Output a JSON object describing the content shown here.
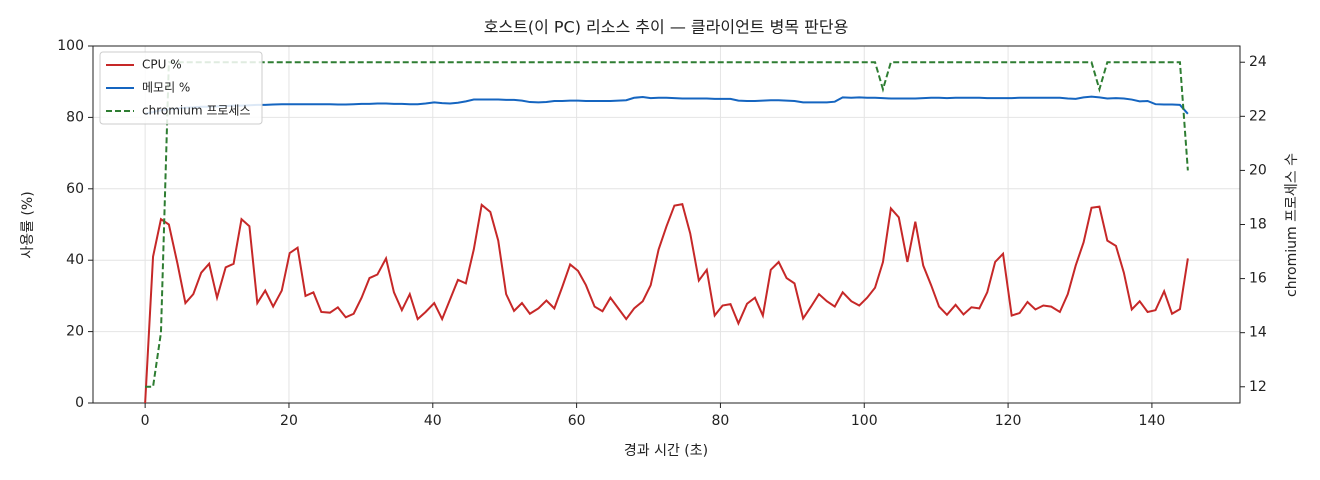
{
  "chart_data": {
    "type": "line",
    "title": "호스트(이 PC) 리소스 추이 — 클라이언트 병목 판단용",
    "xlabel": "경과 시간 (초)",
    "ylabel": "사용률 (%)",
    "y2label": "chromium 프로세스 수",
    "x": [
      0,
      1.1,
      2.2,
      3.3,
      4.5,
      5.6,
      6.7,
      7.8,
      8.9,
      10,
      11.2,
      12.3,
      13.4,
      14.5,
      15.6,
      16.7,
      17.8,
      19,
      20.1,
      21.2,
      22.3,
      23.4,
      24.5,
      25.7,
      26.8,
      27.9,
      29,
      30.1,
      31.2,
      32.3,
      33.5,
      34.6,
      35.7,
      36.8,
      37.9,
      39,
      40.2,
      41.3,
      42.4,
      43.5,
      44.6,
      45.7,
      46.8,
      48,
      49.1,
      50.2,
      51.3,
      52.4,
      53.5,
      54.7,
      55.8,
      56.9,
      58,
      59.1,
      60.2,
      61.3,
      62.5,
      63.6,
      64.7,
      65.8,
      66.9,
      68,
      69.2,
      70.3,
      71.4,
      72.5,
      73.6,
      74.7,
      75.8,
      77,
      78.1,
      79.2,
      80.3,
      81.4,
      82.5,
      83.7,
      84.8,
      85.9,
      87,
      88.1,
      89.2,
      90.3,
      91.5,
      92.6,
      93.7,
      94.8,
      95.9,
      97,
      98.2,
      99.3,
      100.4,
      101.5,
      102.6,
      103.7,
      104.8,
      106,
      107.1,
      108.2,
      109.3,
      110.4,
      111.5,
      112.7,
      113.8,
      114.9,
      116,
      117.1,
      118.2,
      119.3,
      120.5,
      121.6,
      122.7,
      123.8,
      124.9,
      126,
      127.2,
      128.3,
      129.4,
      130.5,
      131.6,
      132.7,
      133.8,
      135,
      136.1,
      137.2,
      138.3,
      139.4,
      140.5,
      141.7,
      142.8,
      143.9,
      145
    ],
    "series": [
      {
        "name": "CPU %",
        "color": "#c62828",
        "linestyle": "solid",
        "values": [
          0,
          41,
          51.5,
          50,
          39,
          28,
          30.5,
          36.5,
          39,
          29.5,
          38,
          39,
          51.5,
          49.5,
          28,
          31.5,
          27,
          31.5,
          42,
          43.5,
          30,
          31,
          25.5,
          25.3,
          26.8,
          24,
          25,
          29.5,
          35,
          36,
          40.5,
          31,
          26,
          30.5,
          23.5,
          25.5,
          28,
          23.5,
          29,
          34.5,
          33.5,
          43,
          55.5,
          53.5,
          45.5,
          30.5,
          25.8,
          28,
          25,
          26.5,
          28.7,
          26.5,
          32.5,
          38.8,
          37,
          33,
          27,
          25.7,
          29.5,
          26.5,
          23.5,
          26.5,
          28.5,
          33,
          43,
          49.5,
          55.3,
          55.7,
          47.5,
          34.3,
          37.3,
          24.5,
          27.3,
          27.7,
          22.3,
          27.8,
          29.5,
          24.5,
          37.3,
          39.5,
          35,
          33.5,
          23.7,
          27,
          30.5,
          28.5,
          27,
          31,
          28.5,
          27.3,
          29.5,
          32.3,
          39.5,
          54.5,
          52,
          39.5,
          50.8,
          38.5,
          33,
          27,
          24.7,
          27.5,
          24.8,
          26.8,
          26.5,
          31,
          39.5,
          41.8,
          24.5,
          25.2,
          28.3,
          26.2,
          27.3,
          27,
          25.5,
          30.5,
          38.5,
          45,
          54.7,
          55,
          45.5,
          44,
          36.5,
          26.2,
          28.5,
          25.5,
          26,
          31.3,
          25,
          26.3,
          40.5
        ]
      },
      {
        "name": "메모리 %",
        "color": "#1565c0",
        "linestyle": "solid",
        "values": [
          81,
          81.5,
          82,
          82.3,
          82.5,
          82.7,
          82.8,
          83,
          83,
          83.1,
          83.2,
          83.3,
          83.3,
          83.4,
          83.5,
          83.5,
          83.6,
          83.7,
          83.7,
          83.7,
          83.7,
          83.7,
          83.7,
          83.7,
          83.6,
          83.6,
          83.7,
          83.8,
          83.8,
          83.9,
          83.9,
          83.8,
          83.8,
          83.7,
          83.7,
          83.9,
          84.2,
          84,
          83.9,
          84.1,
          84.5,
          85,
          85,
          85,
          85,
          84.9,
          84.9,
          84.7,
          84.3,
          84.2,
          84.3,
          84.6,
          84.6,
          84.7,
          84.7,
          84.6,
          84.6,
          84.6,
          84.6,
          84.7,
          84.8,
          85.5,
          85.7,
          85.4,
          85.5,
          85.5,
          85.4,
          85.3,
          85.3,
          85.3,
          85.3,
          85.2,
          85.2,
          85.2,
          84.7,
          84.6,
          84.6,
          84.7,
          84.8,
          84.8,
          84.7,
          84.6,
          84.2,
          84.2,
          84.2,
          84.2,
          84.4,
          85.6,
          85.5,
          85.6,
          85.5,
          85.5,
          85.4,
          85.3,
          85.3,
          85.3,
          85.3,
          85.4,
          85.5,
          85.5,
          85.4,
          85.5,
          85.5,
          85.5,
          85.5,
          85.4,
          85.4,
          85.4,
          85.4,
          85.5,
          85.5,
          85.5,
          85.5,
          85.5,
          85.5,
          85.3,
          85.2,
          85.6,
          85.8,
          85.6,
          85.3,
          85.4,
          85.3,
          85,
          84.5,
          84.6,
          83.7,
          83.6,
          83.6,
          83.5,
          81
        ]
      },
      {
        "name": "chromium 프로세스",
        "color": "#2e7d32",
        "linestyle": "dashed",
        "axis": "y2",
        "values": [
          12,
          12,
          14,
          24,
          24,
          24,
          24,
          24,
          24,
          24,
          24,
          24,
          24,
          24,
          24,
          24,
          24,
          24,
          24,
          24,
          24,
          24,
          24,
          24,
          24,
          24,
          24,
          24,
          24,
          24,
          24,
          24,
          24,
          24,
          24,
          24,
          24,
          24,
          24,
          24,
          24,
          24,
          24,
          24,
          24,
          24,
          24,
          24,
          24,
          24,
          24,
          24,
          24,
          24,
          24,
          24,
          24,
          24,
          24,
          24,
          24,
          24,
          24,
          24,
          24,
          24,
          24,
          24,
          24,
          24,
          24,
          24,
          24,
          24,
          24,
          24,
          24,
          24,
          24,
          24,
          24,
          24,
          24,
          24,
          24,
          24,
          24,
          24,
          24,
          24,
          24,
          24,
          23,
          24,
          24,
          24,
          24,
          24,
          24,
          24,
          24,
          24,
          24,
          24,
          24,
          24,
          24,
          24,
          24,
          24,
          24,
          24,
          24,
          24,
          24,
          24,
          24,
          24,
          24,
          23,
          24,
          24,
          24,
          24,
          24,
          24,
          24,
          24,
          24,
          24,
          20
        ]
      }
    ],
    "xlim": [
      -7.25,
      152.25
    ],
    "xticks": [
      0,
      20,
      40,
      60,
      80,
      100,
      120,
      140
    ],
    "ylim": [
      0,
      100
    ],
    "yticks": [
      0,
      20,
      40,
      60,
      80,
      100
    ],
    "y2lim": [
      11.4,
      24.6
    ],
    "y2ticks": [
      12,
      14,
      16,
      18,
      20,
      22,
      24
    ],
    "grid": true,
    "legend": "upper-left"
  }
}
